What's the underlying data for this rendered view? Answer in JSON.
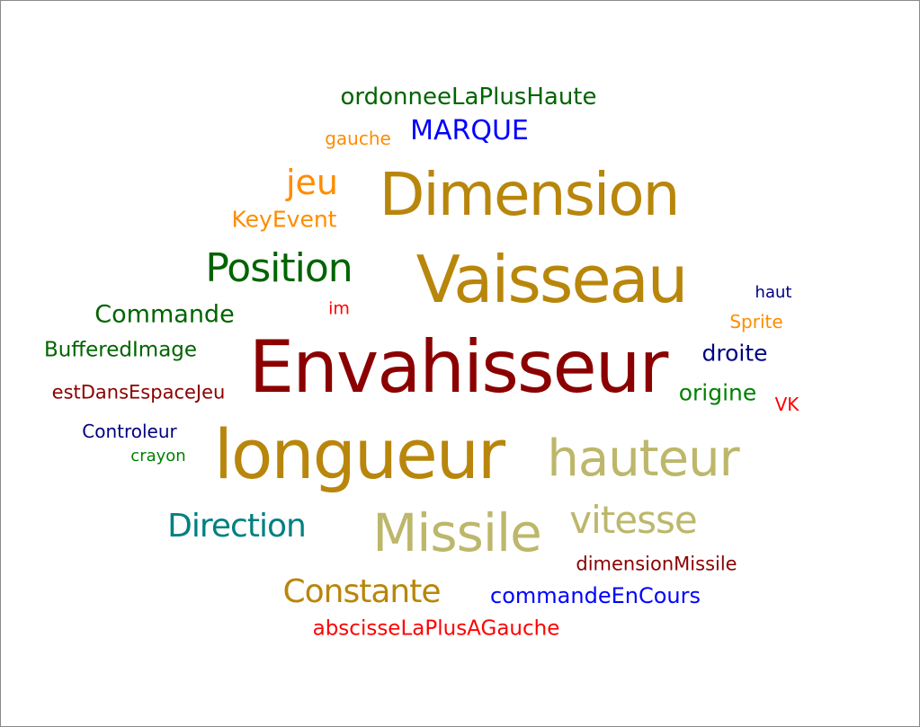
{
  "colors": {
    "dark_red": "#8b0000",
    "gold": "#b8860b",
    "khaki": "#bdb76b",
    "dark_green": "#006400",
    "teal": "#008080",
    "orange": "#ff8c00",
    "blue": "#0000ff",
    "navy": "#000080",
    "red": "#ff0000",
    "green": "#008000"
  },
  "words": [
    {
      "text": "Envahisseur",
      "color": "#8b0000"
    },
    {
      "text": "longueur",
      "color": "#b8860b"
    },
    {
      "text": "Vaisseau",
      "color": "#b8860b"
    },
    {
      "text": "Dimension",
      "color": "#b8860b"
    },
    {
      "text": "hauteur",
      "color": "#bdb76b"
    },
    {
      "text": "Missile",
      "color": "#bdb76b"
    },
    {
      "text": "vitesse",
      "color": "#bdb76b"
    },
    {
      "text": "Position",
      "color": "#006400"
    },
    {
      "text": "Direction",
      "color": "#008080"
    },
    {
      "text": "Constante",
      "color": "#b8860b"
    },
    {
      "text": "jeu",
      "color": "#ff8c00"
    },
    {
      "text": "MARQUE",
      "color": "#0000ff"
    },
    {
      "text": "ordonneeLaPlusHaute",
      "color": "#006400"
    },
    {
      "text": "Commande",
      "color": "#006400"
    },
    {
      "text": "KeyEvent",
      "color": "#ff8c00"
    },
    {
      "text": "BufferedImage",
      "color": "#006400"
    },
    {
      "text": "droite",
      "color": "#000080"
    },
    {
      "text": "origine",
      "color": "#008000"
    },
    {
      "text": "commandeEnCours",
      "color": "#0000ff"
    },
    {
      "text": "abscisseLaPlusAGauche",
      "color": "#ff0000"
    },
    {
      "text": "estDansEspaceJeu",
      "color": "#8b0000"
    },
    {
      "text": "dimensionMissile",
      "color": "#8b0000"
    },
    {
      "text": "Controleur",
      "color": "#000080"
    },
    {
      "text": "gauche",
      "color": "#ff8c00"
    },
    {
      "text": "Sprite",
      "color": "#ff8c00"
    },
    {
      "text": "VK",
      "color": "#ff0000"
    },
    {
      "text": "crayon",
      "color": "#008000"
    },
    {
      "text": "im",
      "color": "#ff0000"
    },
    {
      "text": "haut",
      "color": "#000080"
    }
  ]
}
